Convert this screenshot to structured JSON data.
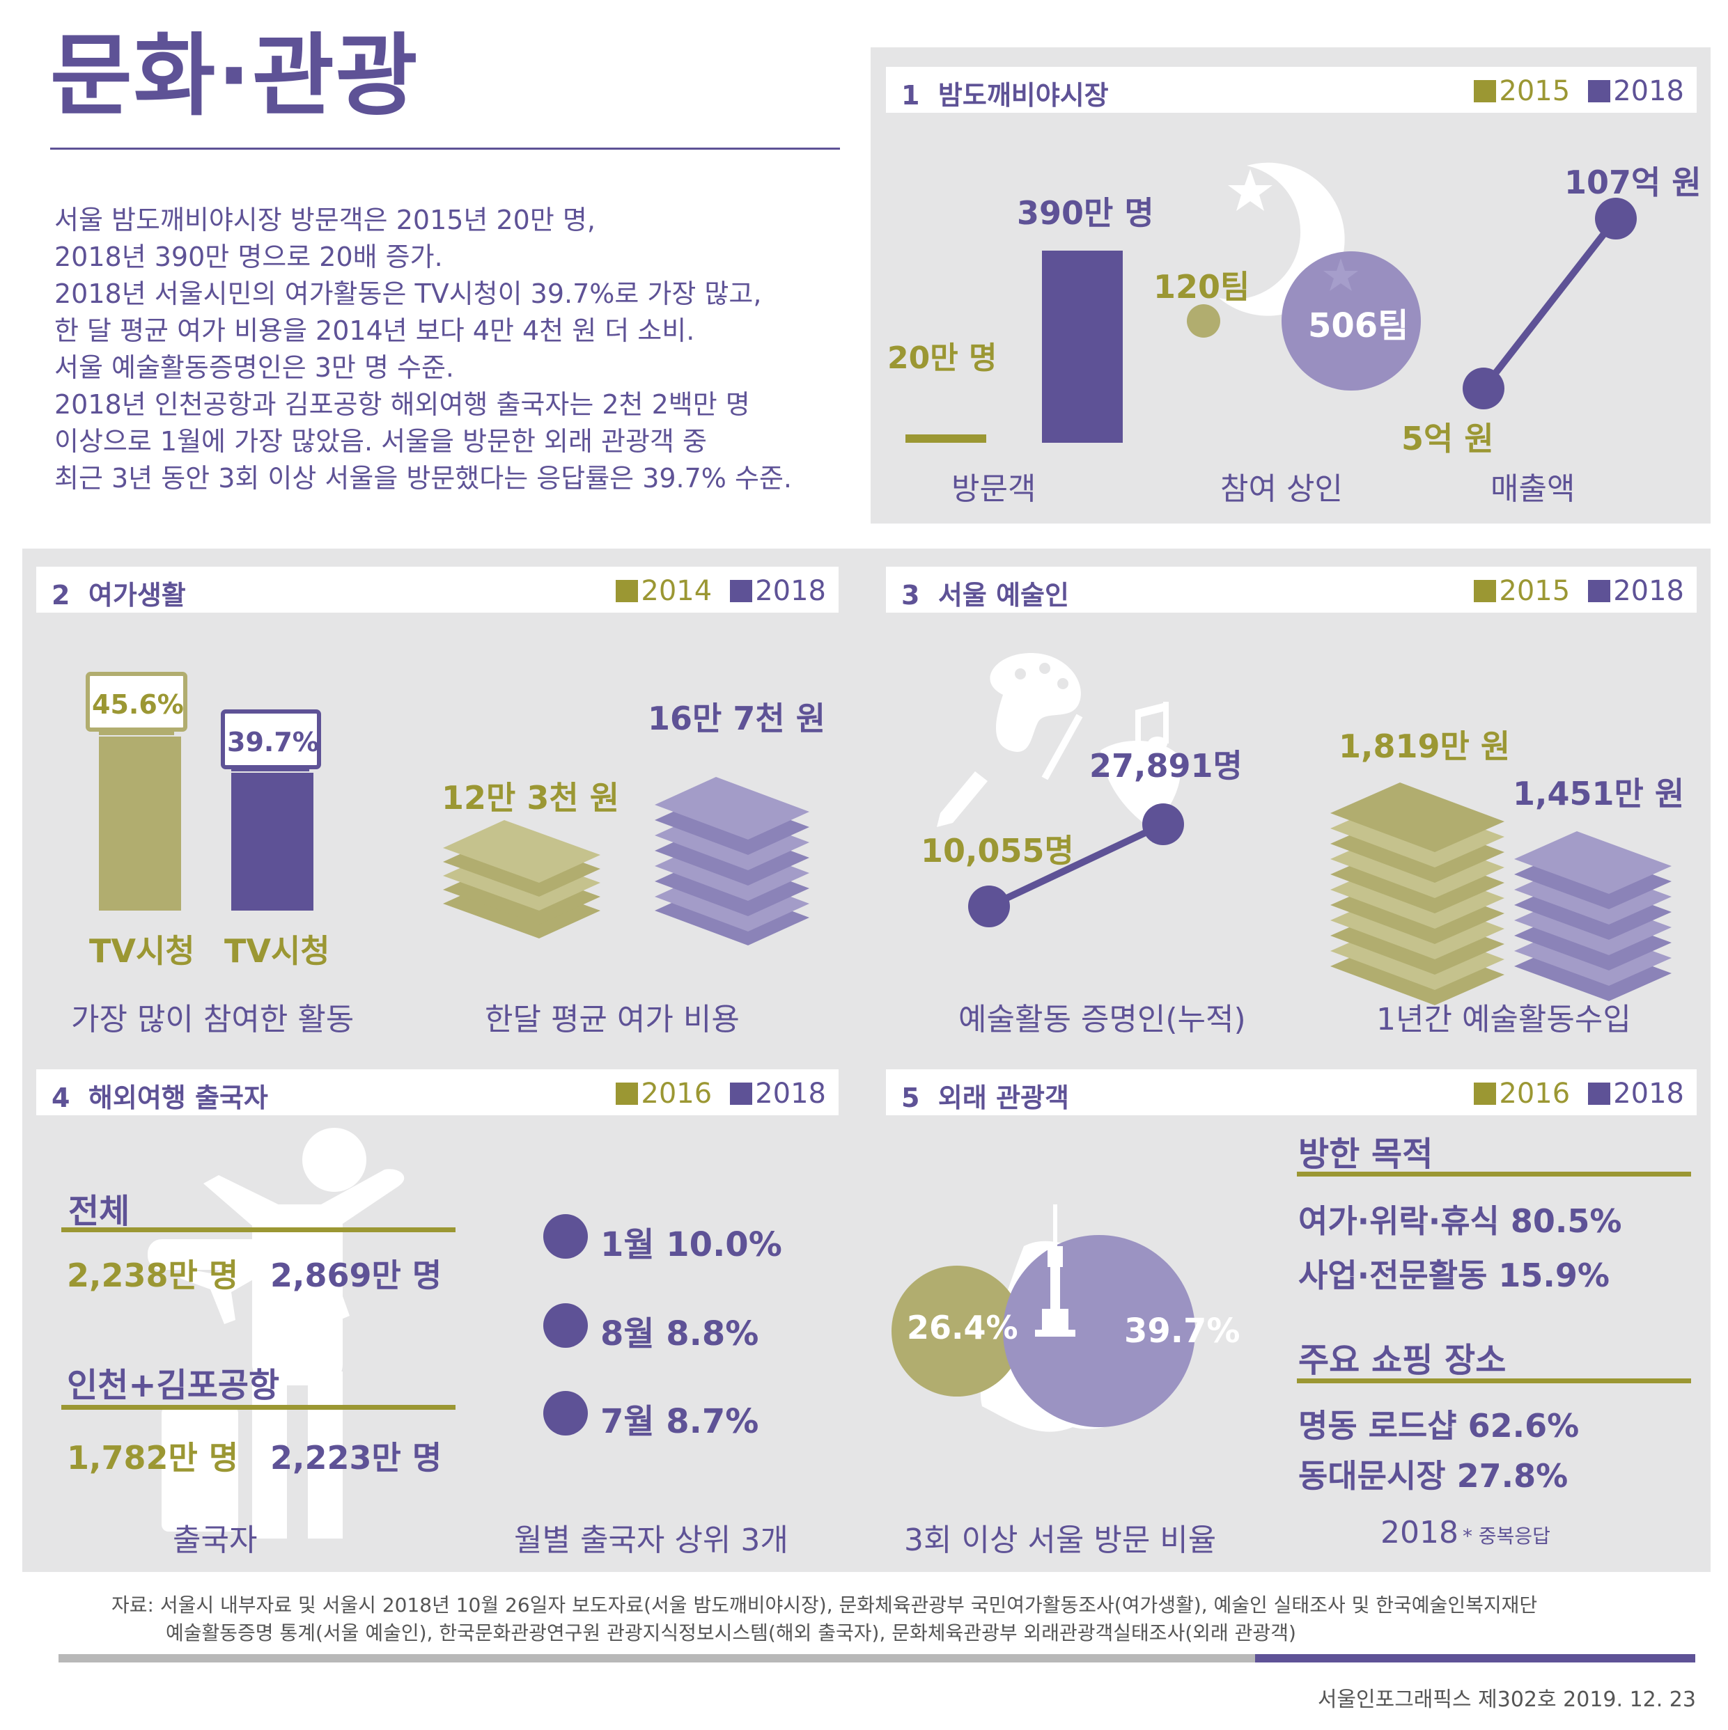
{
  "title": "문화·관광",
  "intro": [
    "서울 밤도깨비야시장 방문객은 2015년 20만 명,",
    "2018년 390만 명으로 20배 증가.",
    "2018년 서울시민의 여가활동은 TV시청이 39.7%로 가장 많고,",
    "한 달 평균 여가 비용을 2014년 보다 4만 4천 원 더 소비.",
    "서울 예술활동증명인은 3만 명 수준.",
    "2018년 인천공항과 김포공항 해외여행 출국자는 2천 2백만 명",
    "이상으로 1월에 가장 많았음. 서울을 방문한 외래 관광객 중",
    "최근 3년 동안 3회 이상 서울을 방문했다는 응답률은 39.7% 수준."
  ],
  "colors": {
    "olive": "#9b9733",
    "purple": "#5e5296",
    "light_purple": "#9b93c2",
    "panel": "#e5e5e6"
  },
  "sec1": {
    "num": "1",
    "title": "밤도깨비야시장",
    "legend": [
      "2015",
      "2018"
    ],
    "visitors": {
      "label": "방문객",
      "v2015": "20만 명",
      "v2018": "390만 명",
      "n2015": 20,
      "n2018": 390
    },
    "merchants": {
      "label": "참여 상인",
      "v2015": "120팀",
      "v2018": "506팀"
    },
    "sales": {
      "label": "매출액",
      "v2015": "5억 원",
      "v2018": "107억 원"
    },
    "icons": [
      "moon-icon",
      "star-icon"
    ]
  },
  "sec2": {
    "num": "2",
    "title": "여가생활",
    "legend": [
      "2014",
      "2018"
    ],
    "activity": {
      "label": "가장 많이 참여한 활동",
      "v2014": "45.6%",
      "v2018": "39.7%",
      "name2014": "TV시청",
      "name2018": "TV시청",
      "n2014": 45.6,
      "n2018": 39.7
    },
    "cost": {
      "label": "한달 평균 여가 비용",
      "v2014": "12만 3천 원",
      "v2018": "16만 7천 원"
    },
    "icons": [
      "tv-icon",
      "money-stack-icon"
    ]
  },
  "sec3": {
    "num": "3",
    "title": "서울 예술인",
    "legend": [
      "2015",
      "2018"
    ],
    "certified": {
      "label": "예술활동 증명인(누적)",
      "v2015": "10,055명",
      "v2018": "27,891명"
    },
    "income": {
      "label": "1년간 예술활동수입",
      "v2015": "1,819만 원",
      "v2018": "1,451만 원"
    },
    "icons": [
      "palette-icon",
      "music-note-icon",
      "mask-icon",
      "brush-icon"
    ]
  },
  "sec4": {
    "num": "4",
    "title": "해외여행 출국자",
    "legend": [
      "2016",
      "2018"
    ],
    "total": {
      "label": "전체",
      "v2016": "2,238만 명",
      "v2018": "2,869만 명"
    },
    "airport": {
      "label": "인천+김포공항",
      "v2016": "1,782만 명",
      "v2018": "2,223만 명"
    },
    "caption_left": "출국자",
    "months": [
      "1월 10.0%",
      "8월 8.8%",
      "7월 8.7%"
    ],
    "caption_right": "월별 출국자 상위 3개",
    "icons": [
      "airplane-icon",
      "traveler-icon"
    ]
  },
  "sec5": {
    "num": "5",
    "title": "외래 관광객",
    "legend": [
      "2016",
      "2018"
    ],
    "revisit": {
      "v2016": "26.4%",
      "v2018": "39.7%",
      "label": "3회 이상 서울 방문 비율"
    },
    "purpose": {
      "heading": "방한 목적",
      "items": [
        "여가·위락·휴식 80.5%",
        "사업·전문활동 15.9%"
      ]
    },
    "shopping": {
      "heading": "주요 쇼핑 장소",
      "items": [
        "명동 로드샵 62.6%",
        "동대문시장 27.8%"
      ]
    },
    "year": "2018",
    "note": "* 중복응답",
    "icons": [
      "seoul-map-icon",
      "namsan-tower-icon"
    ]
  },
  "source": {
    "line1": "자료: 서울시 내부자료 및 서울시 2018년 10월 26일자 보도자료(서울 밤도깨비야시장), 문화체육관광부 국민여가활동조사(여가생활), 예술인 실태조사 및 한국예술인복지재단",
    "line2": "예술활동증명 통계(서울 예술인), 한국문화관광연구원 관광지식정보시스템(해외 출국자), 문화체육관광부 외래관광객실태조사(외래 관광객)"
  },
  "footer": "서울인포그래픽스 제302호 2019. 12. 23"
}
